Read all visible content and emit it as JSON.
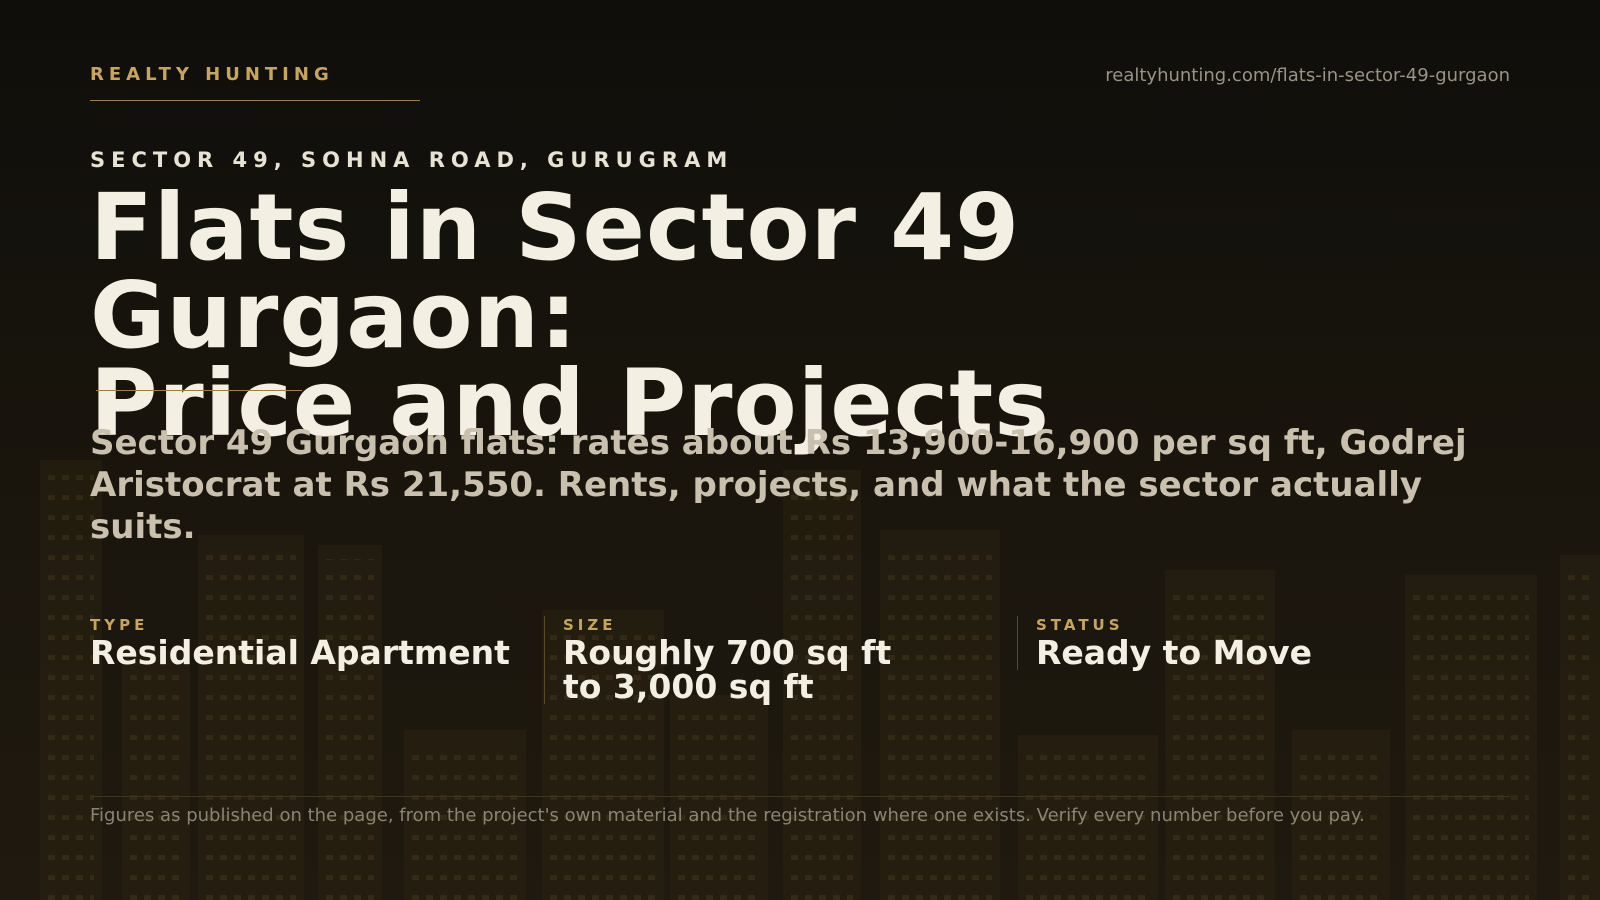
{
  "brand": "REALTY HUNTING",
  "url": "realtyhunting.com/flats-in-sector-49-gurgaon",
  "eyebrow": "SECTOR 49, SOHNA ROAD, GURUGRAM",
  "title": {
    "line1": "Flats in Sector 49 Gurgaon:",
    "line2": "Price and Projects"
  },
  "summary": "Sector 49 Gurgaon flats: rates about Rs 13,900-16,900 per sq ft, Godrej Aristocrat at Rs 21,550. Rents, projects, and what the sector actually suits.",
  "facts": [
    {
      "label": "TYPE",
      "value": "Residential Apartment"
    },
    {
      "label": "SIZE",
      "value": "Roughly 700 sq ft to 3,000 sq ft"
    },
    {
      "label": "STATUS",
      "value": "Ready to Move"
    }
  ],
  "footer": "Figures as published on the page, from the project's own material and the registration where one exists. Verify every number before you pay.",
  "colors": {
    "accent": "#c9a55a",
    "background": "#16130c",
    "title": "#f3efe3",
    "muted": "#8b8473"
  }
}
